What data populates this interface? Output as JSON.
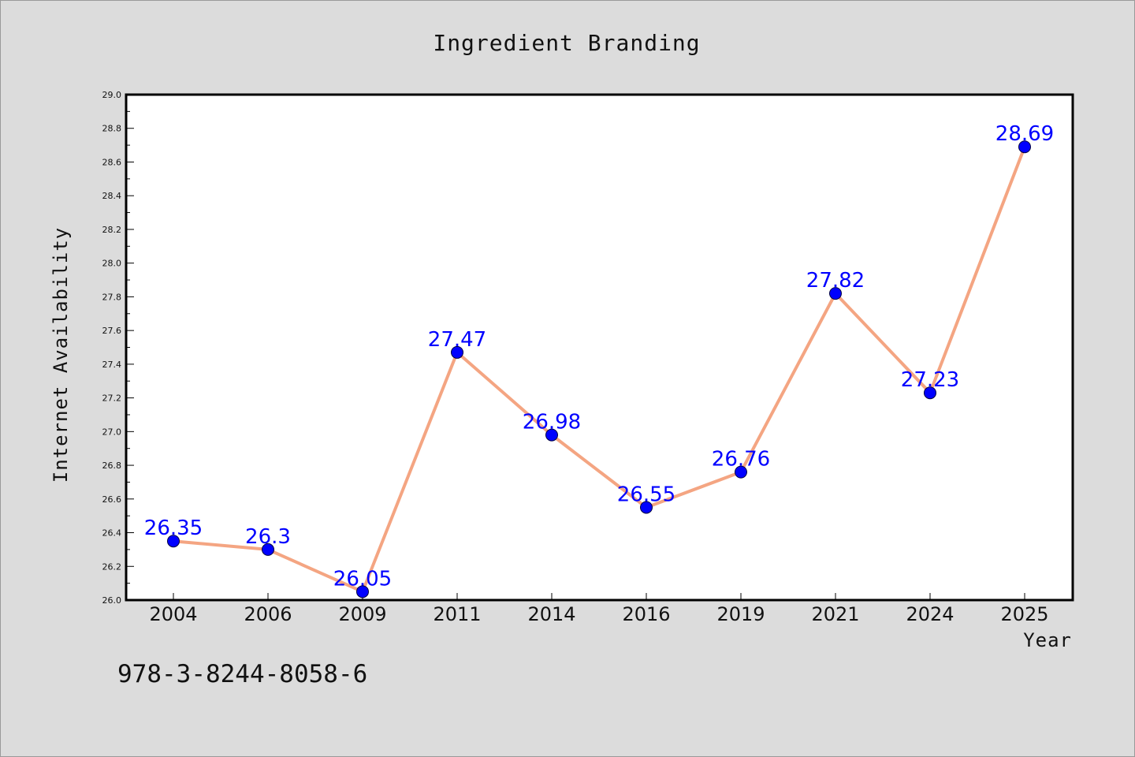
{
  "chart_data": {
    "type": "line",
    "title": "Ingredient Branding",
    "xlabel": "Year",
    "ylabel": "Internet Availability",
    "categories": [
      "2004",
      "2006",
      "2009",
      "2011",
      "2014",
      "2016",
      "2019",
      "2021",
      "2024",
      "2025"
    ],
    "series": [
      {
        "values": [
          26.35,
          26.3,
          26.05,
          27.47,
          26.98,
          26.55,
          26.76,
          27.82,
          27.23,
          28.69
        ],
        "labels": [
          "26.35",
          "26.3",
          "26.05",
          "27.47",
          "26.98",
          "26.55",
          "26.76",
          "27.82",
          "27.23",
          "28.69"
        ],
        "line_color": "#f4a582",
        "marker_color": "#0000ff"
      }
    ],
    "ylim": [
      26.0,
      29.0
    ],
    "yticks": [
      "26.0",
      "26.2",
      "26.4",
      "26.6",
      "26.8",
      "27.0",
      "27.2",
      "27.4",
      "27.6",
      "27.8",
      "28.0",
      "28.2",
      "28.4",
      "28.6",
      "28.8",
      "29.0"
    ],
    "grid": false,
    "data_label_color": "#0000ff"
  },
  "annotation": {
    "isbn": "978-3-8244-8058-6"
  }
}
